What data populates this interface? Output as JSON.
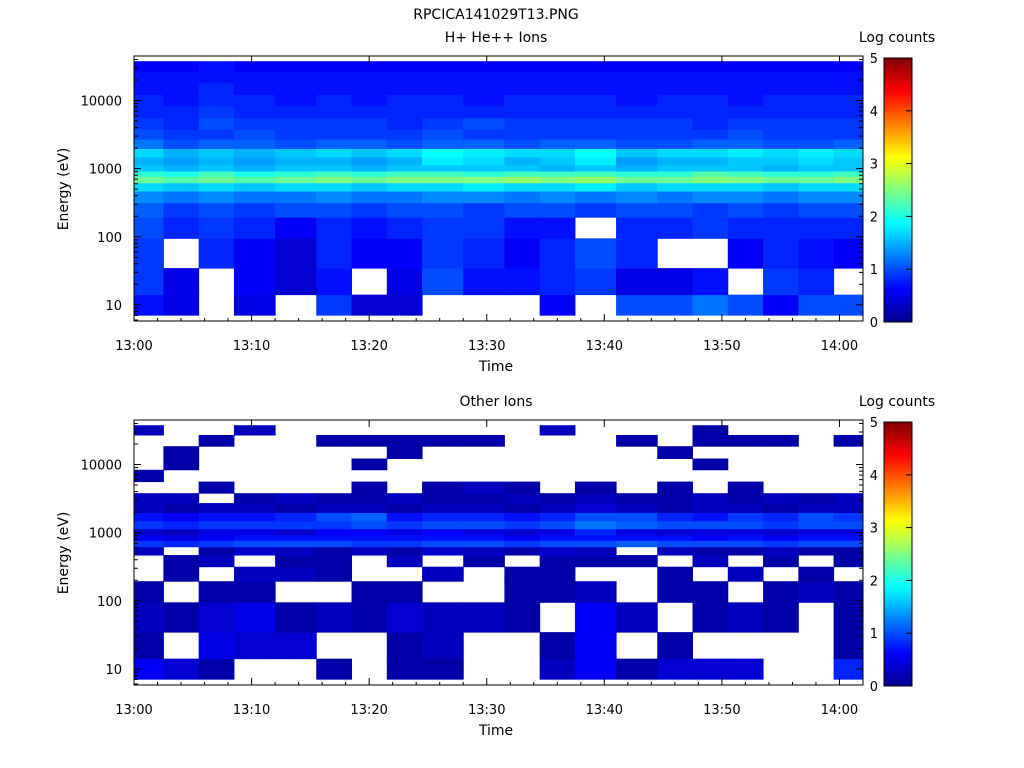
{
  "figure_title": "RPCICA141029T13.PNG",
  "chart_data": [
    {
      "type": "heatmap",
      "title": "H+ He++ Ions",
      "xlabel": "Time",
      "ylabel": "Energy (eV)",
      "colorbar_label": "Log counts",
      "x_ticks": [
        "13:00",
        "13:10",
        "13:20",
        "13:30",
        "13:40",
        "13:50",
        "14:00"
      ],
      "y_ticks": [
        "10",
        "100",
        "1000",
        "10000"
      ],
      "colorbar_ticks": [
        "0",
        "1",
        "2",
        "3",
        "4",
        "5"
      ],
      "xlim": [
        "13:00",
        "14:02"
      ],
      "ylim_eV": [
        5.8,
        45000
      ],
      "y_scale": "log",
      "colorbar_range": [
        0,
        5
      ],
      "colormap": "jet",
      "time_bins": [
        "13:01",
        "13:04",
        "13:07",
        "13:10",
        "13:14",
        "13:17",
        "13:20",
        "13:23",
        "13:26",
        "13:30",
        "13:33",
        "13:36",
        "13:39",
        "13:43",
        "13:46",
        "13:49",
        "13:52",
        "13:55",
        "13:58",
        "14:01"
      ],
      "energy_bins_eV": [
        10,
        20,
        60,
        150,
        250,
        400,
        550,
        700,
        850,
        1000,
        1300,
        1700,
        2300,
        3200,
        4500,
        7000,
        10000,
        15000,
        23000,
        32000
      ],
      "z": [
        [
          0.7,
          0.5,
          null,
          0.5,
          null,
          0.9,
          0.4,
          0.4,
          null,
          null,
          null,
          0.6,
          null,
          1.0,
          1.0,
          1.2,
          1.0,
          0.6,
          1.0,
          1.0
        ],
        [
          0.9,
          0.5,
          null,
          0.6,
          0.4,
          0.7,
          null,
          0.5,
          1.0,
          0.7,
          0.7,
          0.8,
          0.9,
          0.5,
          0.5,
          0.7,
          null,
          0.9,
          0.8,
          null
        ],
        [
          0.9,
          null,
          0.8,
          0.6,
          0.4,
          0.8,
          0.6,
          0.6,
          0.9,
          0.8,
          0.6,
          0.8,
          1.0,
          0.8,
          null,
          null,
          0.6,
          0.8,
          0.7,
          0.6
        ],
        [
          1.0,
          0.8,
          0.9,
          0.8,
          0.6,
          0.8,
          0.7,
          0.8,
          0.9,
          0.9,
          0.7,
          0.7,
          null,
          0.8,
          0.8,
          0.9,
          0.8,
          0.8,
          0.8,
          0.8
        ],
        [
          1.1,
          0.9,
          1.0,
          0.9,
          1.0,
          1.0,
          0.9,
          1.0,
          1.0,
          0.9,
          1.0,
          1.0,
          0.9,
          1.0,
          1.0,
          0.9,
          1.0,
          0.9,
          1.0,
          1.0
        ],
        [
          1.3,
          1.2,
          1.3,
          1.2,
          1.2,
          1.3,
          1.2,
          1.2,
          1.3,
          1.3,
          1.2,
          1.3,
          1.2,
          1.3,
          1.2,
          1.3,
          1.3,
          1.2,
          1.3,
          1.3
        ],
        [
          1.7,
          1.6,
          1.7,
          1.6,
          1.7,
          1.7,
          1.6,
          1.7,
          1.7,
          1.8,
          1.7,
          1.7,
          1.8,
          1.6,
          1.7,
          1.7,
          1.7,
          1.6,
          1.7,
          1.7
        ],
        [
          2.4,
          2.3,
          2.4,
          2.3,
          2.4,
          2.5,
          2.4,
          2.5,
          2.5,
          2.5,
          2.6,
          2.5,
          2.6,
          2.4,
          2.4,
          2.5,
          2.5,
          2.4,
          2.4,
          2.5
        ],
        [
          2.1,
          2.0,
          2.2,
          2.0,
          2.1,
          2.2,
          2.1,
          2.2,
          2.2,
          2.1,
          2.2,
          2.2,
          2.2,
          2.1,
          2.1,
          2.3,
          2.2,
          2.1,
          2.1,
          2.2
        ],
        [
          1.6,
          1.5,
          1.6,
          1.5,
          1.6,
          1.6,
          1.5,
          1.6,
          1.6,
          1.6,
          1.6,
          1.5,
          1.6,
          1.5,
          1.6,
          1.6,
          1.6,
          1.5,
          1.6,
          1.6
        ],
        [
          1.5,
          1.4,
          1.5,
          1.4,
          1.5,
          1.5,
          1.4,
          1.5,
          1.8,
          1.7,
          1.5,
          1.6,
          1.8,
          1.4,
          1.5,
          1.5,
          1.6,
          1.6,
          1.7,
          1.6
        ],
        [
          1.7,
          1.5,
          1.6,
          1.5,
          1.6,
          1.7,
          1.6,
          1.7,
          1.9,
          1.8,
          1.7,
          1.7,
          1.9,
          1.6,
          1.7,
          1.7,
          1.8,
          1.7,
          1.8,
          1.7
        ],
        [
          1.2,
          1.0,
          1.1,
          1.1,
          1.0,
          1.1,
          1.1,
          1.0,
          1.1,
          1.1,
          1.0,
          1.1,
          1.1,
          1.0,
          1.0,
          1.1,
          1.1,
          1.0,
          1.0,
          1.1
        ],
        [
          1.0,
          0.9,
          0.9,
          1.0,
          0.9,
          0.9,
          0.9,
          0.9,
          1.0,
          0.9,
          0.9,
          0.9,
          0.9,
          0.9,
          0.9,
          0.9,
          1.0,
          0.9,
          0.9,
          0.9
        ],
        [
          0.9,
          0.8,
          1.0,
          0.9,
          0.9,
          0.9,
          0.9,
          0.8,
          0.9,
          1.0,
          0.9,
          0.9,
          0.9,
          0.9,
          0.9,
          0.8,
          0.9,
          0.9,
          0.9,
          0.9
        ],
        [
          0.8,
          0.8,
          0.9,
          0.8,
          0.8,
          0.8,
          0.8,
          0.8,
          0.8,
          0.8,
          0.8,
          0.8,
          0.8,
          0.8,
          0.8,
          0.8,
          0.8,
          0.8,
          0.8,
          0.8
        ],
        [
          0.8,
          0.7,
          0.8,
          0.8,
          0.7,
          0.8,
          0.7,
          0.8,
          0.8,
          0.7,
          0.8,
          0.8,
          0.8,
          0.7,
          0.8,
          0.8,
          0.7,
          0.8,
          0.8,
          0.8
        ],
        [
          0.7,
          0.7,
          0.8,
          0.7,
          0.7,
          0.7,
          0.7,
          0.7,
          0.7,
          0.7,
          0.7,
          0.7,
          0.7,
          0.7,
          0.7,
          0.7,
          0.7,
          0.7,
          0.7,
          0.7
        ],
        [
          0.7,
          0.7,
          0.7,
          0.7,
          0.7,
          0.7,
          0.7,
          0.7,
          0.7,
          0.7,
          0.7,
          0.7,
          0.7,
          0.7,
          0.7,
          0.7,
          0.7,
          0.7,
          0.7,
          0.7
        ],
        [
          0.6,
          0.6,
          0.7,
          0.6,
          0.6,
          0.6,
          0.6,
          0.6,
          0.6,
          0.6,
          0.6,
          0.6,
          0.6,
          0.6,
          0.6,
          0.6,
          0.6,
          0.6,
          0.6,
          0.6
        ]
      ]
    },
    {
      "type": "heatmap",
      "title": "Other Ions",
      "xlabel": "Time",
      "ylabel": "Energy (eV)",
      "colorbar_label": "Log counts",
      "x_ticks": [
        "13:00",
        "13:10",
        "13:20",
        "13:30",
        "13:40",
        "13:50",
        "14:00"
      ],
      "y_ticks": [
        "10",
        "100",
        "1000",
        "10000"
      ],
      "colorbar_ticks": [
        "0",
        "1",
        "2",
        "3",
        "4",
        "5"
      ],
      "xlim": [
        "13:00",
        "14:02"
      ],
      "ylim_eV": [
        5.8,
        45000
      ],
      "y_scale": "log",
      "colorbar_range": [
        0,
        5
      ],
      "colormap": "jet",
      "time_bins": [
        "13:01",
        "13:04",
        "13:07",
        "13:10",
        "13:14",
        "13:17",
        "13:20",
        "13:23",
        "13:26",
        "13:30",
        "13:33",
        "13:36",
        "13:39",
        "13:43",
        "13:46",
        "13:49",
        "13:52",
        "13:55",
        "13:58",
        "14:01"
      ],
      "energy_bins_eV": [
        10,
        20,
        60,
        150,
        250,
        400,
        550,
        700,
        850,
        1000,
        1300,
        1700,
        2300,
        3200,
        4500,
        7000,
        10000,
        15000,
        23000,
        32000
      ],
      "z": [
        [
          0.6,
          0.4,
          0.2,
          null,
          null,
          0.2,
          null,
          0.2,
          0.2,
          null,
          null,
          0.3,
          0.6,
          0.2,
          0.4,
          0.4,
          0.4,
          null,
          null,
          0.8
        ],
        [
          0.2,
          null,
          0.5,
          0.4,
          0.4,
          null,
          null,
          0.2,
          0.3,
          null,
          null,
          0.2,
          0.6,
          null,
          0.2,
          null,
          null,
          null,
          null,
          0.2
        ],
        [
          0.3,
          0.2,
          0.4,
          0.5,
          0.2,
          0.3,
          0.2,
          0.4,
          0.3,
          0.3,
          0.2,
          null,
          0.6,
          0.3,
          null,
          0.2,
          0.3,
          0.2,
          null,
          0.2
        ],
        [
          0.2,
          null,
          0.2,
          0.2,
          null,
          null,
          0.2,
          0.2,
          null,
          null,
          0.2,
          0.2,
          0.3,
          null,
          0.2,
          0.2,
          null,
          0.2,
          0.3,
          0.2
        ],
        [
          null,
          0.2,
          null,
          0.3,
          0.3,
          0.2,
          null,
          null,
          0.3,
          null,
          0.2,
          0.2,
          null,
          null,
          0.2,
          null,
          0.3,
          null,
          0.2,
          null
        ],
        [
          null,
          0.2,
          0.3,
          null,
          0.2,
          0.2,
          null,
          0.3,
          null,
          0.2,
          null,
          0.2,
          0.2,
          0.2,
          null,
          0.3,
          null,
          0.2,
          null,
          0.2
        ],
        [
          0.3,
          null,
          0.2,
          0.4,
          0.3,
          0.2,
          0.3,
          0.2,
          0.4,
          0.3,
          0.2,
          0.4,
          0.3,
          null,
          0.3,
          0.2,
          0.2,
          0.3,
          0.2,
          0.2
        ],
        [
          0.9,
          0.8,
          0.9,
          1.0,
          1.0,
          1.0,
          0.9,
          0.9,
          1.0,
          1.0,
          0.9,
          1.0,
          1.0,
          1.1,
          1.0,
          1.0,
          1.0,
          0.9,
          1.0,
          1.0
        ],
        [
          0.6,
          0.5,
          0.6,
          0.7,
          0.7,
          0.7,
          0.7,
          0.7,
          0.7,
          0.7,
          0.6,
          0.7,
          0.7,
          0.7,
          0.7,
          0.6,
          0.7,
          0.6,
          0.7,
          0.7
        ],
        [
          0.4,
          0.3,
          0.5,
          0.5,
          0.4,
          0.6,
          0.6,
          0.5,
          0.6,
          0.5,
          0.4,
          0.5,
          0.8,
          0.5,
          0.4,
          0.5,
          0.5,
          0.4,
          0.5,
          0.5
        ],
        [
          0.9,
          0.8,
          0.9,
          0.9,
          0.9,
          0.9,
          1.0,
          0.9,
          1.0,
          1.0,
          0.9,
          1.0,
          1.2,
          1.1,
          1.0,
          1.0,
          1.0,
          0.9,
          1.0,
          1.0
        ],
        [
          0.7,
          0.6,
          0.7,
          0.7,
          0.8,
          1.0,
          1.1,
          0.7,
          0.8,
          0.8,
          0.7,
          0.8,
          1.0,
          1.0,
          0.8,
          0.7,
          0.9,
          0.8,
          1.0,
          0.9
        ],
        [
          0.3,
          0.2,
          0.3,
          0.3,
          0.2,
          0.3,
          0.3,
          0.2,
          0.3,
          0.3,
          0.2,
          0.3,
          0.4,
          0.3,
          0.2,
          0.3,
          0.3,
          0.2,
          0.3,
          0.3
        ],
        [
          0.3,
          0.3,
          null,
          0.2,
          0.3,
          0.2,
          0.2,
          0.3,
          0.2,
          0.2,
          0.3,
          0.2,
          0.3,
          0.2,
          0.2,
          0.3,
          0.2,
          0.3,
          0.2,
          0.3
        ],
        [
          null,
          null,
          0.2,
          null,
          null,
          null,
          0.2,
          null,
          0.2,
          0.3,
          0.2,
          null,
          0.2,
          null,
          0.2,
          null,
          0.2,
          null,
          null,
          null
        ],
        [
          0.2,
          null,
          null,
          null,
          null,
          null,
          null,
          null,
          null,
          null,
          null,
          null,
          null,
          null,
          null,
          null,
          null,
          null,
          null,
          null
        ],
        [
          null,
          0.2,
          null,
          null,
          null,
          null,
          0.2,
          null,
          null,
          null,
          null,
          null,
          null,
          null,
          null,
          0.2,
          null,
          null,
          null,
          null
        ],
        [
          null,
          0.2,
          null,
          null,
          null,
          null,
          null,
          0.2,
          null,
          null,
          null,
          null,
          null,
          null,
          0.2,
          null,
          null,
          null,
          null,
          null
        ],
        [
          null,
          null,
          0.2,
          null,
          null,
          0.2,
          0.2,
          0.2,
          0.2,
          0.2,
          null,
          null,
          null,
          0.2,
          null,
          0.2,
          0.2,
          0.2,
          null,
          0.2
        ],
        [
          0.3,
          null,
          null,
          0.3,
          null,
          null,
          null,
          null,
          null,
          null,
          null,
          0.3,
          null,
          null,
          null,
          0.2,
          null,
          null,
          null,
          null
        ]
      ]
    }
  ]
}
